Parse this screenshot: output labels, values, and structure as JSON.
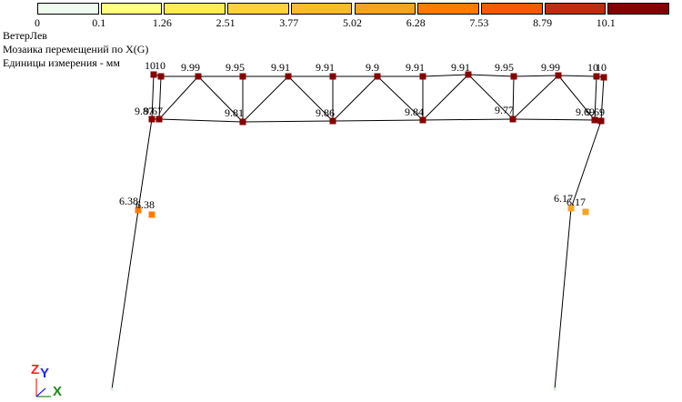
{
  "legend": {
    "ticks": [
      "0",
      "0.1",
      "1.26",
      "2.51",
      "3.77",
      "5.02",
      "6.28",
      "7.53",
      "8.79",
      "10.1"
    ],
    "colors": [
      "#eefbee",
      "#ffff80",
      "#ffec52",
      "#ffd23c",
      "#fbbb2c",
      "#f6a321",
      "#ff7c00",
      "#f45a00",
      "#bd2d0b",
      "#850000"
    ]
  },
  "info": {
    "load_case": "ВетерЛев",
    "mosaic_title": "Мозаика перемещений по X(G)",
    "units": "Единицы измерения - мм"
  },
  "nodes": [
    {
      "label": "10"
    },
    {
      "label": "10"
    },
    {
      "label": "9.99"
    },
    {
      "label": "9.95"
    },
    {
      "label": "9.91"
    },
    {
      "label": "9.91"
    },
    {
      "label": "9.9"
    },
    {
      "label": "9.91"
    },
    {
      "label": "9.91"
    },
    {
      "label": "9.95"
    },
    {
      "label": "9.99"
    },
    {
      "label": "10"
    },
    {
      "label": "10"
    },
    {
      "label": "9.87"
    },
    {
      "label": "9.67"
    },
    {
      "label": "9.81"
    },
    {
      "label": "9.86"
    },
    {
      "label": "9.84"
    },
    {
      "label": "9.77"
    },
    {
      "label": "9.69"
    },
    {
      "label": "9.69"
    },
    {
      "label": "6.38"
    },
    {
      "label": "6.38"
    },
    {
      "label": "6.17"
    },
    {
      "label": "6.17"
    },
    {
      "label": ""
    },
    {
      "label": ""
    }
  ],
  "axes": {
    "z": "Z",
    "y": "Y",
    "x": "X",
    "colors": {
      "z": "#ff2020",
      "y": "#2020ff",
      "x": "#1a8a1a"
    }
  }
}
